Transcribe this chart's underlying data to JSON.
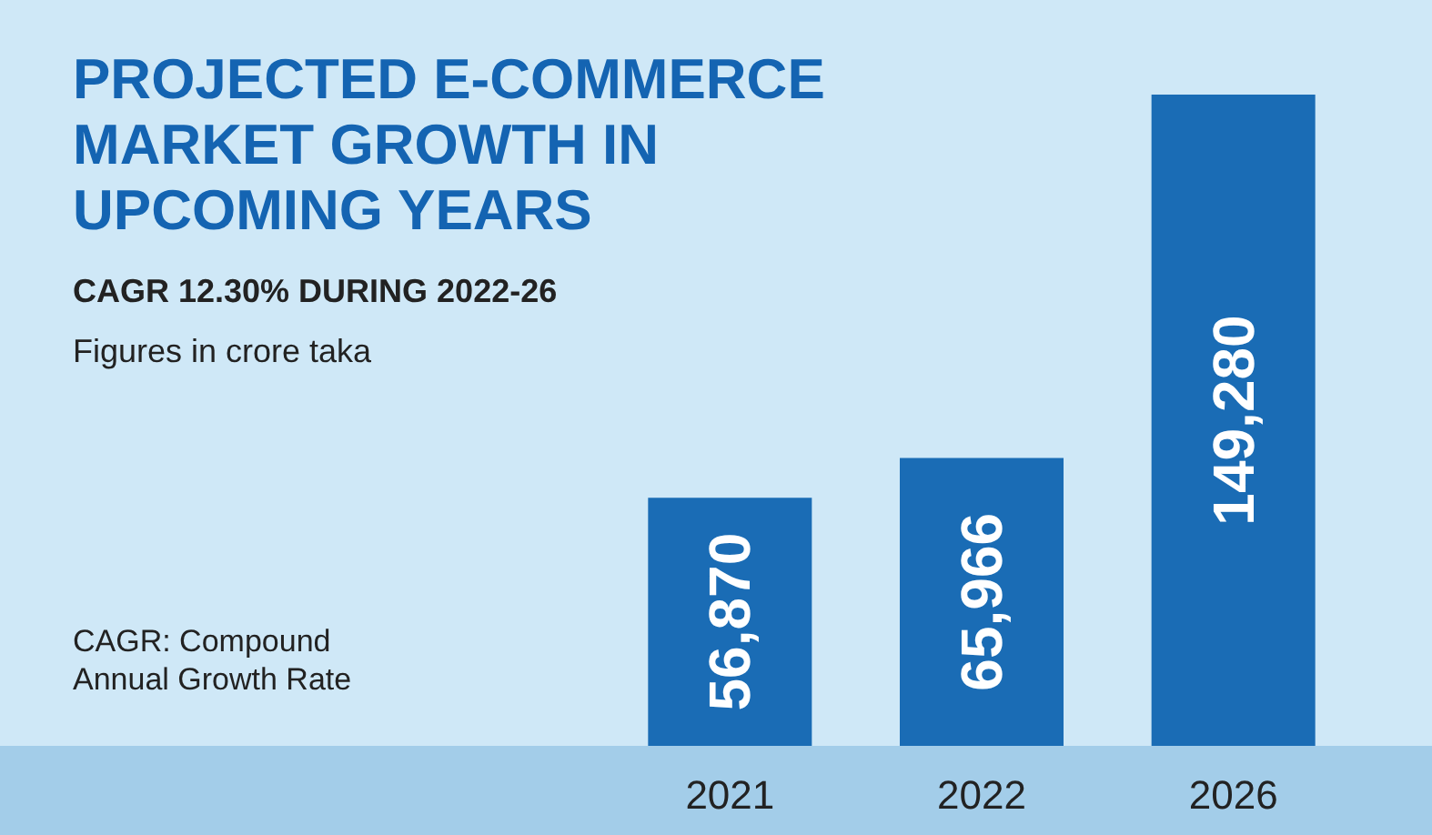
{
  "chart_data": {
    "type": "bar",
    "title": "PROJECTED E-COMMERCE MARKET GROWTH IN UPCOMING YEARS",
    "subtitle": "CAGR 12.30% DURING 2022-26",
    "annotations": [
      "Figures in crore taka",
      "CAGR: Compound Annual Growth Rate"
    ],
    "categories": [
      "2021",
      "2022",
      "2026"
    ],
    "values": [
      56870,
      65966,
      149280
    ],
    "value_labels": [
      "56,870",
      "65,966",
      "149,280"
    ],
    "color": "#1a6cb5"
  }
}
